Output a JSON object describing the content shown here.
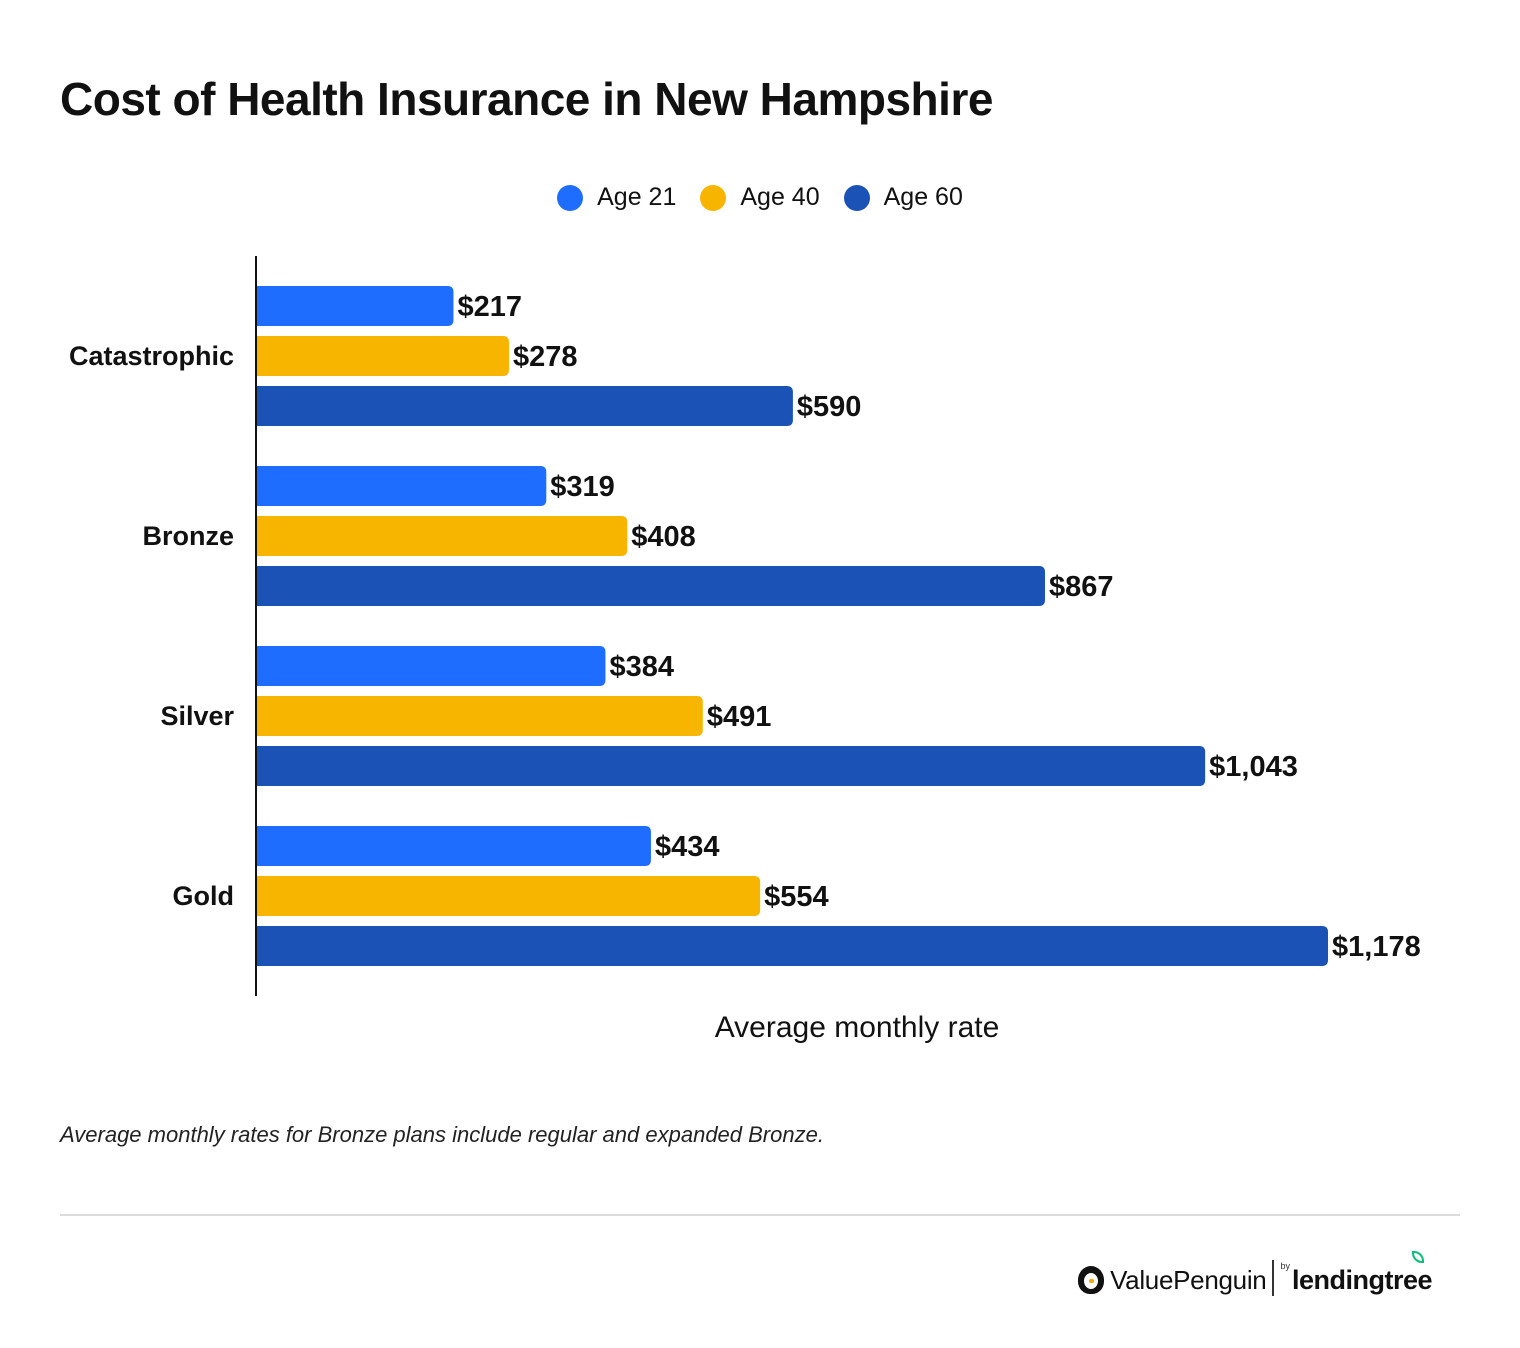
{
  "title": "Cost of Health Insurance in New Hampshire",
  "footnote": "Average monthly rates for Bronze plans include regular and expanded Bronze.",
  "brand": {
    "valuepenguin": "ValuePenguin",
    "by": "by",
    "lendingtree": "lendingtree"
  },
  "chart_data": {
    "type": "bar",
    "orientation": "horizontal",
    "categories": [
      "Catastrophic",
      "Bronze",
      "Silver",
      "Gold"
    ],
    "series": [
      {
        "name": "Age 21",
        "color": "#1f6dff",
        "values": [
          217,
          319,
          384,
          434
        ],
        "labels": [
          "$217",
          "$319",
          "$384",
          "$434"
        ]
      },
      {
        "name": "Age 40",
        "color": "#f8b500",
        "values": [
          278,
          408,
          491,
          554
        ],
        "labels": [
          "$278",
          "$408",
          "$491",
          "$554"
        ]
      },
      {
        "name": "Age 60",
        "color": "#1a52b5",
        "values": [
          590,
          867,
          1043,
          1178
        ],
        "labels": [
          "$590",
          "$867",
          "$1,043",
          "$1,178"
        ]
      }
    ],
    "xlabel": "Average monthly rate",
    "ylabel": "",
    "xlim": [
      0,
      1178
    ],
    "grid": false,
    "legend": "top-center"
  }
}
